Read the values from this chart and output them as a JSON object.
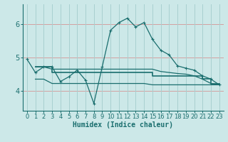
{
  "xlabel": "Humidex (Indice chaleur)",
  "bg_color": "#cce8e8",
  "grid_color_h": "#d4a0a0",
  "grid_color_v": "#a8d0d0",
  "line_color": "#1a6e6e",
  "xlim": [
    -0.5,
    23.5
  ],
  "ylim": [
    3.4,
    6.6
  ],
  "yticks": [
    4,
    5,
    6
  ],
  "xticks": [
    0,
    1,
    2,
    3,
    4,
    5,
    6,
    7,
    8,
    9,
    10,
    11,
    12,
    13,
    14,
    15,
    16,
    17,
    18,
    19,
    20,
    21,
    22,
    23
  ],
  "line1_x": [
    0,
    1,
    2,
    3,
    4,
    5,
    6,
    7,
    8,
    9,
    10,
    11,
    12,
    13,
    14,
    15,
    16,
    17,
    18,
    19,
    20,
    21,
    22,
    23
  ],
  "line1_y": [
    4.95,
    4.55,
    4.72,
    4.72,
    4.28,
    4.42,
    4.62,
    4.32,
    3.62,
    4.72,
    5.82,
    6.05,
    6.18,
    5.92,
    6.05,
    5.55,
    5.22,
    5.08,
    4.75,
    4.68,
    4.62,
    4.45,
    4.35,
    4.18
  ],
  "line2_x": [
    1,
    2,
    3,
    4,
    5,
    6,
    7,
    8,
    9,
    10,
    11,
    12,
    13,
    14,
    15,
    16,
    17,
    18,
    19,
    20,
    21,
    22,
    23
  ],
  "line2_y": [
    4.72,
    4.72,
    4.65,
    4.65,
    4.65,
    4.65,
    4.65,
    4.65,
    4.65,
    4.65,
    4.65,
    4.65,
    4.65,
    4.65,
    4.65,
    4.58,
    4.55,
    4.52,
    4.5,
    4.45,
    4.35,
    4.22,
    4.18
  ],
  "line3_x": [
    1,
    2,
    3,
    4,
    5,
    6,
    7,
    8,
    9,
    10,
    11,
    12,
    13,
    14,
    15,
    16,
    17,
    18,
    19,
    20,
    21,
    22,
    23
  ],
  "line3_y": [
    4.35,
    4.35,
    4.22,
    4.22,
    4.22,
    4.22,
    4.22,
    4.22,
    4.22,
    4.22,
    4.22,
    4.22,
    4.22,
    4.22,
    4.18,
    4.18,
    4.18,
    4.18,
    4.18,
    4.18,
    4.18,
    4.18,
    4.18
  ],
  "line4_x": [
    1,
    2,
    3,
    9,
    10,
    14,
    15,
    19,
    20,
    21,
    22,
    23
  ],
  "line4_y": [
    4.72,
    4.72,
    4.55,
    4.55,
    4.55,
    4.55,
    4.45,
    4.45,
    4.45,
    4.35,
    4.22,
    4.18
  ]
}
